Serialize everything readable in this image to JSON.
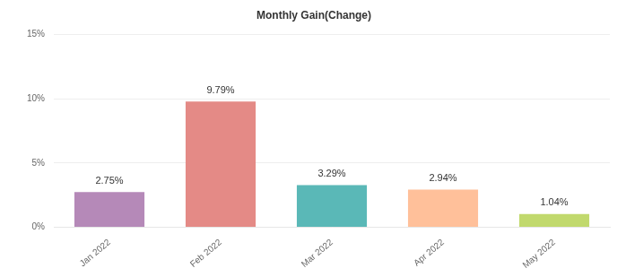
{
  "chart_data": {
    "type": "bar",
    "title": "Monthly Gain(Change)",
    "categories": [
      "Jan 2022",
      "Feb 2022",
      "Mar 2022",
      "Apr 2022",
      "May 2022"
    ],
    "values": [
      2.75,
      9.79,
      3.29,
      2.94,
      1.04
    ],
    "value_labels": [
      "2.75%",
      "9.79%",
      "3.29%",
      "2.94%",
      "1.04%"
    ],
    "colors": [
      "#b589b8",
      "#e48a86",
      "#5ab8b7",
      "#ffc09a",
      "#c1d96d"
    ],
    "ylim": [
      0,
      15
    ],
    "yticks": [
      {
        "value": 0,
        "label": "0%"
      },
      {
        "value": 5,
        "label": "5%"
      },
      {
        "value": 10,
        "label": "10%"
      },
      {
        "value": 15,
        "label": "15%"
      }
    ],
    "grid": true,
    "data_labels": true
  }
}
